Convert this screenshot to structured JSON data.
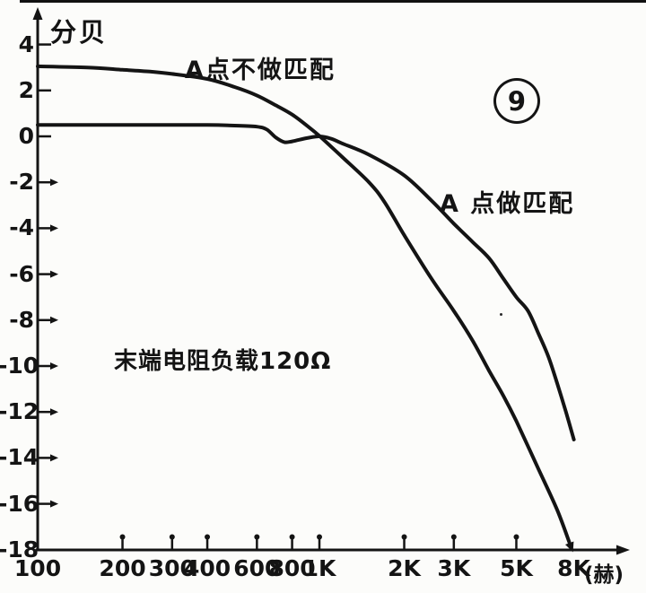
{
  "figure_number": "9",
  "colors": {
    "ink": "#141414",
    "paper": "#fcfcfa"
  },
  "chart_data": {
    "type": "line",
    "title": "",
    "ylabel": "分贝",
    "xlabel": "",
    "x_unit_label": "(赫)",
    "x_scale": "log",
    "xlim": [
      100,
      8000
    ],
    "ylim": [
      -18,
      4
    ],
    "grid": false,
    "legend_position": "inline-annotations",
    "annotation": "末端电阻负载120Ω",
    "x_ticks": [
      {
        "value": 100,
        "label": "100",
        "lollipop": false
      },
      {
        "value": 200,
        "label": "200",
        "lollipop": true
      },
      {
        "value": 300,
        "label": "300",
        "lollipop": true
      },
      {
        "value": 400,
        "label": "400",
        "lollipop": true
      },
      {
        "value": 600,
        "label": "600",
        "lollipop": true
      },
      {
        "value": 800,
        "label": "800",
        "lollipop": true
      },
      {
        "value": 1000,
        "label": "1K",
        "lollipop": true
      },
      {
        "value": 2000,
        "label": "2K",
        "lollipop": true
      },
      {
        "value": 3000,
        "label": "3K",
        "lollipop": true
      },
      {
        "value": 5000,
        "label": "5K",
        "lollipop": true
      },
      {
        "value": 8000,
        "label": "8K",
        "lollipop": false
      }
    ],
    "y_ticks": [
      {
        "value": 4,
        "label": "4",
        "arrow": false
      },
      {
        "value": 2,
        "label": "2",
        "arrow": false
      },
      {
        "value": 0,
        "label": "0",
        "arrow": false
      },
      {
        "value": -2,
        "label": "-2",
        "arrow": true
      },
      {
        "value": -4,
        "label": "-4",
        "arrow": true
      },
      {
        "value": -6,
        "label": "-6",
        "arrow": true
      },
      {
        "value": -8,
        "label": "-8",
        "arrow": true
      },
      {
        "value": -10,
        "label": "-10",
        "arrow": true
      },
      {
        "value": -12,
        "label": "-12",
        "arrow": true
      },
      {
        "value": -14,
        "label": "-14",
        "arrow": true
      },
      {
        "value": -16,
        "label": "-16",
        "arrow": true
      },
      {
        "value": -18,
        "label": "-18",
        "arrow": false
      }
    ],
    "series": [
      {
        "name": "A点不做匹配",
        "end_arrow": true,
        "points": [
          [
            100,
            3.05
          ],
          [
            150,
            3.0
          ],
          [
            200,
            2.9
          ],
          [
            250,
            2.82
          ],
          [
            300,
            2.72
          ],
          [
            400,
            2.5
          ],
          [
            500,
            2.15
          ],
          [
            600,
            1.78
          ],
          [
            700,
            1.35
          ],
          [
            800,
            0.95
          ],
          [
            900,
            0.48
          ],
          [
            1000,
            0.02
          ],
          [
            1200,
            -0.88
          ],
          [
            1500,
            -2.0
          ],
          [
            1700,
            -2.85
          ],
          [
            2000,
            -4.3
          ],
          [
            2500,
            -6.2
          ],
          [
            3000,
            -7.6
          ],
          [
            3500,
            -8.9
          ],
          [
            4000,
            -10.2
          ],
          [
            4500,
            -11.3
          ],
          [
            5000,
            -12.4
          ],
          [
            6000,
            -14.5
          ],
          [
            7000,
            -16.3
          ],
          [
            7800,
            -17.85
          ]
        ]
      },
      {
        "name": "A 点做匹配",
        "end_arrow": false,
        "points": [
          [
            100,
            0.5
          ],
          [
            200,
            0.5
          ],
          [
            300,
            0.5
          ],
          [
            400,
            0.5
          ],
          [
            500,
            0.47
          ],
          [
            600,
            0.42
          ],
          [
            650,
            0.3
          ],
          [
            700,
            -0.05
          ],
          [
            750,
            -0.25
          ],
          [
            800,
            -0.22
          ],
          [
            900,
            -0.08
          ],
          [
            1000,
            0.0
          ],
          [
            1100,
            -0.1
          ],
          [
            1200,
            -0.3
          ],
          [
            1500,
            -0.8
          ],
          [
            2000,
            -1.7
          ],
          [
            2500,
            -2.8
          ],
          [
            3000,
            -3.8
          ],
          [
            3500,
            -4.6
          ],
          [
            4000,
            -5.3
          ],
          [
            4500,
            -6.2
          ],
          [
            5000,
            -7.0
          ],
          [
            5500,
            -7.6
          ],
          [
            6000,
            -8.6
          ],
          [
            6500,
            -9.6
          ],
          [
            7000,
            -10.8
          ],
          [
            7500,
            -12.0
          ],
          [
            8000,
            -13.2
          ]
        ]
      }
    ]
  }
}
